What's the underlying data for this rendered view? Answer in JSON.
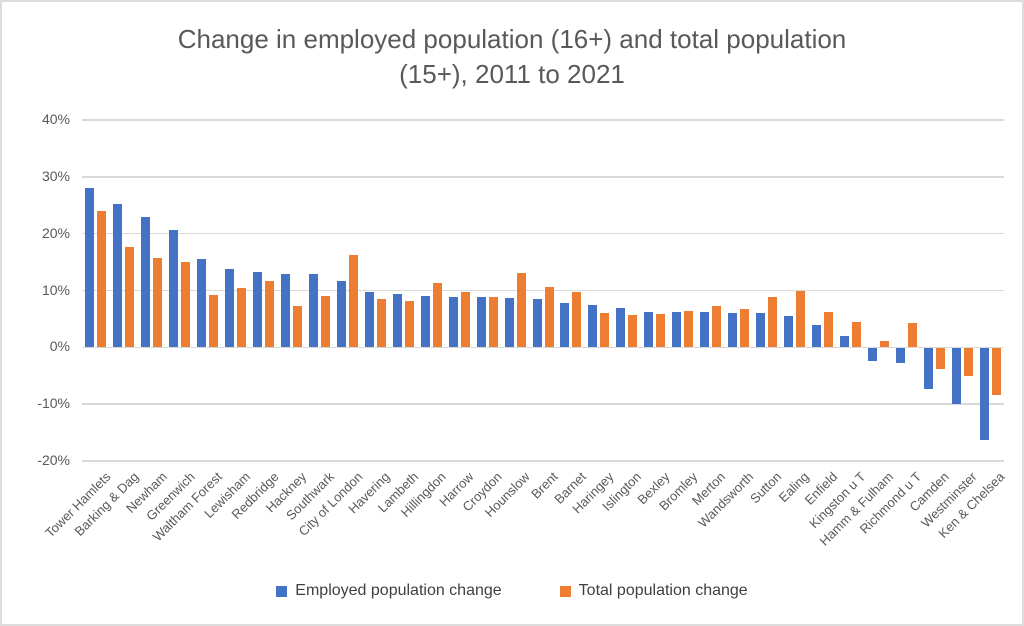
{
  "title": {
    "line1": "Change in employed population (16+) and total population",
    "line2": "(15+), 2011 to 2021"
  },
  "y_axis": {
    "ticks": [
      "40%",
      "30%",
      "20%",
      "10%",
      "0%",
      "-10%",
      "-20%"
    ]
  },
  "legend": {
    "items": [
      {
        "label": "Employed population change",
        "color": "#4472C4"
      },
      {
        "label": "Total population change",
        "color": "#ED7D31"
      }
    ]
  },
  "colors": {
    "blue": "#4472C4",
    "orange": "#ED7D31",
    "gridline": "#d9d9d9",
    "axis_text": "#595959",
    "title_text": "#595959",
    "legend_text": "#404040"
  },
  "chart_data": {
    "type": "bar",
    "title": "Change in employed population (16+) and total population (15+), 2011 to 2021",
    "xlabel": "",
    "ylabel": "",
    "ylim": [
      -20,
      40
    ],
    "ytick_step": 10,
    "grid": true,
    "legend_position": "bottom",
    "categories": [
      "Tower Hamlets",
      "Barking & Dag",
      "Newham",
      "Greenwich",
      "Waltham Forest",
      "Lewisham",
      "Redbridge",
      "Hackney",
      "Southwark",
      "City of London",
      "Havering",
      "Lambeth",
      "Hillingdon",
      "Harrow",
      "Croydon",
      "Hounslow",
      "Brent",
      "Barnet",
      "Haringey",
      "Islington",
      "Bexley",
      "Bromley",
      "Merton",
      "Wandsworth",
      "Sutton",
      "Ealing",
      "Enfield",
      "Kingston u T",
      "Hamm & Fulham",
      "Richmond u T",
      "Camden",
      "Westminster",
      "Ken & Chelsea"
    ],
    "series": [
      {
        "name": "Employed population change",
        "color": "#4472C4",
        "values": [
          28,
          25.2,
          23,
          20.7,
          15.5,
          13.8,
          13.2,
          12.9,
          12.9,
          11.6,
          9.8,
          9.4,
          9,
          8.9,
          8.9,
          8.6,
          8.5,
          7.8,
          7.5,
          7,
          6.3,
          6.2,
          6.2,
          6.1,
          6,
          5.5,
          4,
          2,
          -2.2,
          -2.6,
          -7.2,
          -9.8,
          -16.2
        ]
      },
      {
        "name": "Total population change",
        "color": "#ED7D31",
        "values": [
          24,
          17.7,
          15.8,
          15,
          9.2,
          10.5,
          11.7,
          7.3,
          9,
          16.3,
          8.5,
          8.2,
          11.3,
          9.7,
          8.9,
          13.1,
          10.6,
          9.7,
          6.1,
          5.7,
          5.8,
          6.4,
          7.3,
          6.7,
          8.9,
          9.9,
          6.3,
          4.4,
          1.2,
          4.2,
          -3.7,
          -5,
          -8.2
        ]
      }
    ]
  }
}
